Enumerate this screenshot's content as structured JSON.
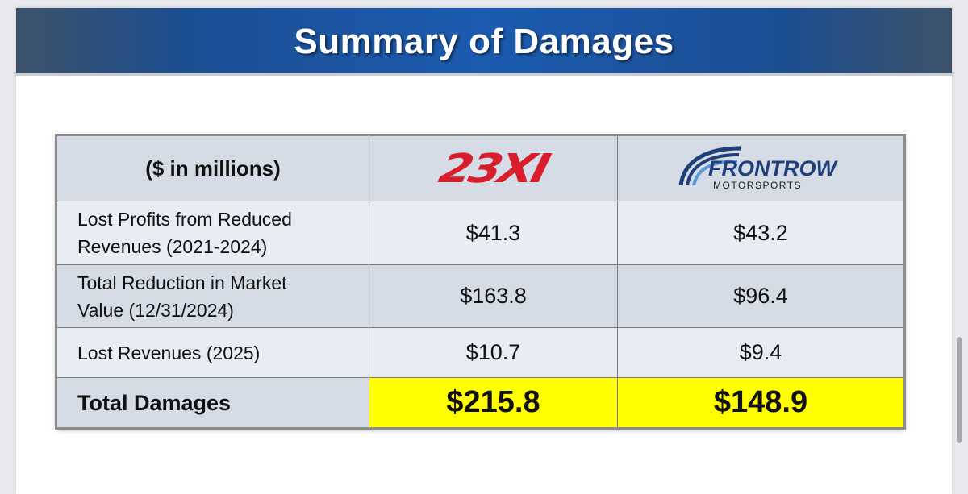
{
  "slide": {
    "title": "Summary of Damages"
  },
  "table": {
    "header_label": "($ in millions)",
    "teams": [
      {
        "logo_text": "23XI",
        "logo_color": "#d81e2c",
        "logo_icon": "23xi-logo"
      },
      {
        "logo_text": "FRONTROW",
        "logo_subtext": "MOTORSPORTS",
        "logo_color": "#1f3f7a",
        "logo_icon": "front-row-motorsports-logo"
      }
    ],
    "rows": [
      {
        "label_line1": "Lost Profits from Reduced",
        "label_line2": "Revenues (2021-2024)",
        "v1": "$41.3",
        "v2": "$43.2"
      },
      {
        "label_line1": "Total Reduction in Market",
        "label_line2": "Value (12/31/2024)",
        "v1": "$163.8",
        "v2": "$96.4"
      },
      {
        "label_line1": "Lost Revenues (2025)",
        "label_line2": "",
        "v1": "$10.7",
        "v2": "$9.4"
      }
    ],
    "total": {
      "label": "Total Damages",
      "v1": "$215.8",
      "v2": "$148.9",
      "highlight_color": "#ffff00"
    }
  }
}
